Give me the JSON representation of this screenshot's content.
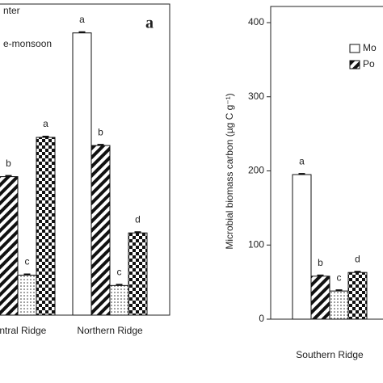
{
  "chart_data": [
    {
      "type": "bar",
      "panel_label": "a",
      "categories": [
        "central Ridge",
        "Northern Ridge"
      ],
      "ylim": [
        0,
        420
      ],
      "series": [
        {
          "name": null,
          "pattern": "none",
          "values": [
            null,
            381
          ],
          "letters": [
            null,
            "a"
          ]
        },
        {
          "name": null,
          "pattern": "hatch",
          "values": [
            187,
            229
          ],
          "letters": [
            "b",
            "b"
          ]
        },
        {
          "name": "nter",
          "pattern": "dots",
          "values": [
            54,
            40
          ],
          "letters": [
            "c",
            "c"
          ]
        },
        {
          "name": "e-monsoon",
          "pattern": "checker",
          "values": [
            240,
            111
          ],
          "letters": [
            "a",
            "d"
          ]
        }
      ]
    },
    {
      "type": "bar",
      "y_label": "Microbial biomass carbon (µg C g⁻¹)",
      "categories": [
        "Southern Ridge"
      ],
      "ylim": [
        0,
        400
      ],
      "yticks": [
        0,
        100,
        200,
        300,
        400
      ],
      "series": [
        {
          "name": "Mo",
          "pattern": "none",
          "values": [
            195
          ],
          "letters": [
            "a"
          ]
        },
        {
          "name": "Po",
          "pattern": "hatch",
          "values": [
            58
          ],
          "letters": [
            "b"
          ]
        },
        {
          "name": null,
          "pattern": "dots",
          "values": [
            38
          ],
          "letters": [
            "c"
          ]
        },
        {
          "name": null,
          "pattern": "checker",
          "values": [
            63
          ],
          "letters": [
            "d"
          ]
        }
      ]
    }
  ]
}
